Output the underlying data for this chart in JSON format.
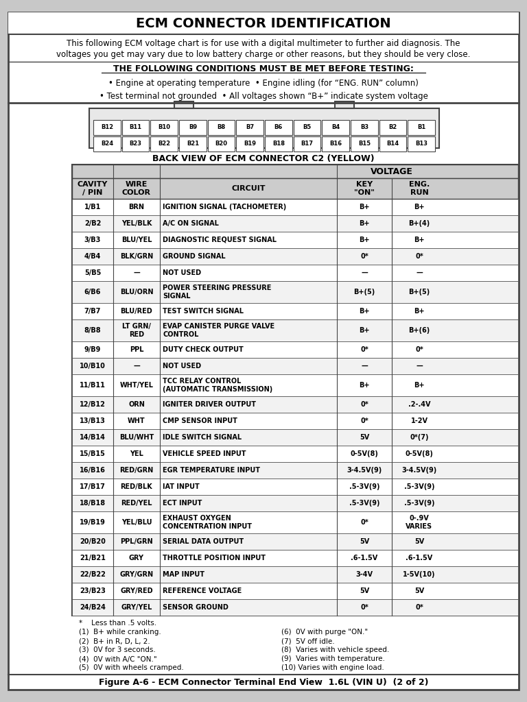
{
  "title": "ECM CONNECTOR IDENTIFICATION",
  "intro_text1": "This following ECM voltage chart is for use with a digital multimeter to further aid diagnosis. The",
  "intro_text2": "voltages you get may vary due to low battery charge or other reasons, but they should be very close.",
  "conditions_title": "THE FOLLOWING CONDITIONS MUST BE MET BEFORE TESTING:",
  "conditions": [
    "• Engine at operating temperature  • Engine idling (for “ENG. RUN” column)",
    "• Test terminal not grounded  • All voltages shown “B+” indicate system voltage"
  ],
  "connector_row1": [
    "B12",
    "B11",
    "B10",
    "B9",
    "B8",
    "B7",
    "B6",
    "B5",
    "B4",
    "B3",
    "B2",
    "B1"
  ],
  "connector_row2": [
    "B24",
    "B23",
    "B22",
    "B21",
    "B20",
    "B19",
    "B18",
    "B17",
    "B16",
    "B15",
    "B14",
    "B13"
  ],
  "connector_label": "BACK VIEW OF ECM CONNECTOR C2 (YELLOW)",
  "table_headers": [
    "CAVITY\n/ PIN",
    "WIRE\nCOLOR",
    "CIRCUIT",
    "KEY\n\"ON\"",
    "ENG.\nRUN"
  ],
  "voltage_header": "VOLTAGE",
  "rows": [
    [
      "1/B1",
      "BRN",
      "IGNITION SIGNAL (TACHOMETER)",
      "B+",
      "B+"
    ],
    [
      "2/B2",
      "YEL/BLK",
      "A/C ON SIGNAL",
      "B+",
      "B+(4)"
    ],
    [
      "3/B3",
      "BLU/YEL",
      "DIAGNOSTIC REQUEST SIGNAL",
      "B+",
      "B+"
    ],
    [
      "4/B4",
      "BLK/GRN",
      "GROUND SIGNAL",
      "0*",
      "0*"
    ],
    [
      "5/B5",
      "—",
      "NOT USED",
      "—",
      "—"
    ],
    [
      "6/B6",
      "BLU/ORN",
      "POWER STEERING PRESSURE\nSIGNAL",
      "B+(5)",
      "B+(5)"
    ],
    [
      "7/B7",
      "BLU/RED",
      "TEST SWITCH SIGNAL",
      "B+",
      "B+"
    ],
    [
      "8/B8",
      "LT GRN/\nRED",
      "EVAP CANISTER PURGE VALVE\nCONTROL",
      "B+",
      "B+(6)"
    ],
    [
      "9/B9",
      "PPL",
      "DUTY CHECK OUTPUT",
      "0*",
      "0*"
    ],
    [
      "10/B10",
      "—",
      "NOT USED",
      "—",
      "—"
    ],
    [
      "11/B11",
      "WHT/YEL",
      "TCC RELAY CONTROL\n(AUTOMATIC TRANSMISSION)",
      "B+",
      "B+"
    ],
    [
      "12/B12",
      "ORN",
      "IGNITER DRIVER OUTPUT",
      "0*",
      ".2-.4V"
    ],
    [
      "13/B13",
      "WHT",
      "CMP SENSOR INPUT",
      "0*",
      "1-2V"
    ],
    [
      "14/B14",
      "BLU/WHT",
      "IDLE SWITCH SIGNAL",
      "5V",
      "0*(7)"
    ],
    [
      "15/B15",
      "YEL",
      "VEHICLE SPEED INPUT",
      "0-5V(8)",
      "0-5V(8)"
    ],
    [
      "16/B16",
      "RED/GRN",
      "EGR TEMPERATURE INPUT",
      "3-4.5V(9)",
      "3-4.5V(9)"
    ],
    [
      "17/B17",
      "RED/BLK",
      "IAT INPUT",
      ".5-3V(9)",
      ".5-3V(9)"
    ],
    [
      "18/B18",
      "RED/YEL",
      "ECT INPUT",
      ".5-3V(9)",
      ".5-3V(9)"
    ],
    [
      "19/B19",
      "YEL/BLU",
      "EXHAUST OXYGEN\nCONCENTRATION INPUT",
      "0*",
      "0-.9V\nVARIES"
    ],
    [
      "20/B20",
      "PPL/GRN",
      "SERIAL DATA OUTPUT",
      "5V",
      "5V"
    ],
    [
      "21/B21",
      "GRY",
      "THROTTLE POSITION INPUT",
      ".6-1.5V",
      ".6-1.5V"
    ],
    [
      "22/B22",
      "GRY/GRN",
      "MAP INPUT",
      "3-4V",
      "1-5V(10)"
    ],
    [
      "23/B23",
      "GRY/RED",
      "REFERENCE VOLTAGE",
      "5V",
      "5V"
    ],
    [
      "24/B24",
      "GRY/YEL",
      "SENSOR GROUND",
      "0*",
      "0*"
    ]
  ],
  "footnotes_left": [
    "*    Less than .5 volts.",
    "(1)  B+ while cranking.",
    "(2)  B+ in R, D, L, 2.",
    "(3)  0V for 3 seconds.",
    "(4)  0V with A/C \"ON.\"",
    "(5)  0V with wheels cramped."
  ],
  "footnotes_right": [
    "(6)  0V with purge \"ON.\"",
    "(7)  5V off idle.",
    "(8)  Varies with vehicle speed.",
    "(9)  Varies with temperature.",
    "(10) Varies with engine load."
  ],
  "figure_caption": "Figure A-6 - ECM Connector Terminal End View  1.6L (VIN U)  (2 of 2)",
  "bg_color": "#c8c8c8",
  "white_bg": "#ffffff",
  "border_color": "#444444",
  "text_color": "#111111",
  "header_bg": "#cccccc"
}
